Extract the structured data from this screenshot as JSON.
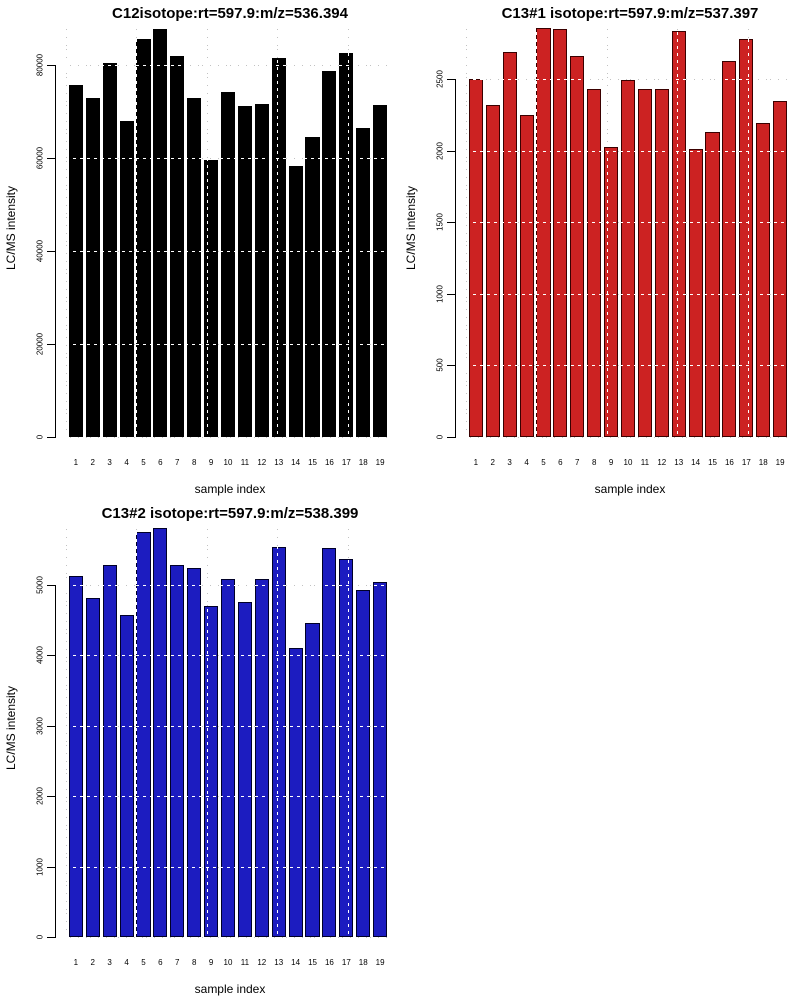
{
  "figure": {
    "background": "#ffffff",
    "grid_color": "#c2c2c2",
    "grid_overlay_color": "#ffffff"
  },
  "chart_data": [
    {
      "type": "bar",
      "title": "C12isotope:rt=597.9:m/z=536.394",
      "xlabel": "sample index",
      "ylabel": "LC/MS intensity",
      "bar_color": "#000000",
      "bar_border": "#000000",
      "categories": [
        "1",
        "2",
        "3",
        "4",
        "5",
        "6",
        "7",
        "8",
        "9",
        "10",
        "11",
        "12",
        "13",
        "14",
        "15",
        "16",
        "17",
        "18",
        "19"
      ],
      "values": [
        75700,
        72900,
        80300,
        67800,
        85400,
        87700,
        81800,
        72800,
        59400,
        74200,
        71000,
        71600,
        81400,
        58200,
        64500,
        78600,
        82400,
        66300,
        71400
      ],
      "yticks": [
        0,
        20000,
        40000,
        60000,
        80000
      ],
      "ylim": [
        0,
        88500
      ],
      "grid": "dotted",
      "legend": "none"
    },
    {
      "type": "bar",
      "title": "C13#1 isotope:rt=597.9:m/z=537.397",
      "xlabel": "sample index",
      "ylabel": "LC/MS intensity",
      "bar_color": "#cc2222",
      "bar_border": "#3a0000",
      "categories": [
        "1",
        "2",
        "3",
        "4",
        "5",
        "6",
        "7",
        "8",
        "9",
        "10",
        "11",
        "12",
        "13",
        "14",
        "15",
        "16",
        "17",
        "18",
        "19"
      ],
      "values": [
        2500,
        2320,
        2690,
        2250,
        2860,
        2855,
        2665,
        2435,
        2030,
        2495,
        2430,
        2435,
        2835,
        2010,
        2130,
        2625,
        2780,
        2195,
        2350
      ],
      "yticks": [
        0,
        500,
        1000,
        1500,
        2000,
        2500
      ],
      "ylim": [
        0,
        2880
      ],
      "grid": "dotted",
      "legend": "none"
    },
    {
      "type": "bar",
      "title": "C13#2 isotope:rt=597.9:m/z=538.399",
      "xlabel": "sample index",
      "ylabel": "LC/MS intensity",
      "bar_color": "#1c1cc0",
      "bar_border": "#000028",
      "categories": [
        "1",
        "2",
        "3",
        "4",
        "5",
        "6",
        "7",
        "8",
        "9",
        "10",
        "11",
        "12",
        "13",
        "14",
        "15",
        "16",
        "17",
        "18",
        "19"
      ],
      "values": [
        5120,
        4810,
        5280,
        4570,
        5755,
        5810,
        5280,
        5245,
        4700,
        5080,
        4750,
        5090,
        5535,
        4110,
        4465,
        5525,
        5370,
        4930,
        5035
      ],
      "yticks": [
        0,
        1000,
        2000,
        3000,
        4000,
        5000
      ],
      "ylim": [
        0,
        5850
      ],
      "grid": "dotted",
      "legend": "none"
    }
  ]
}
